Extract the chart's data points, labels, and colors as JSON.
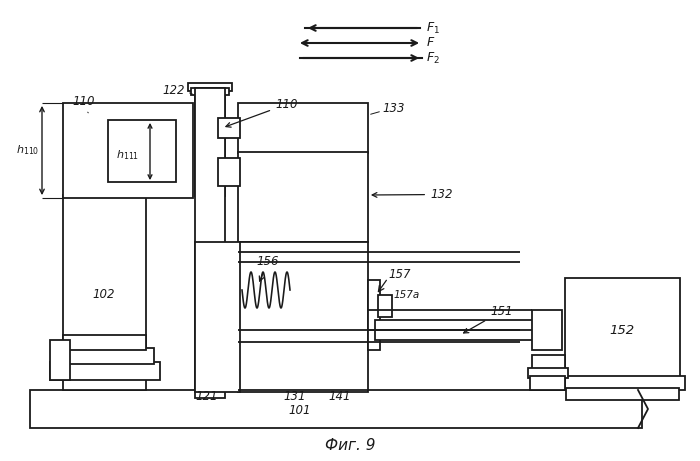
{
  "bg_color": "#ffffff",
  "line_color": "#1a1a1a",
  "lw": 1.3,
  "title": "Фиг. 9"
}
